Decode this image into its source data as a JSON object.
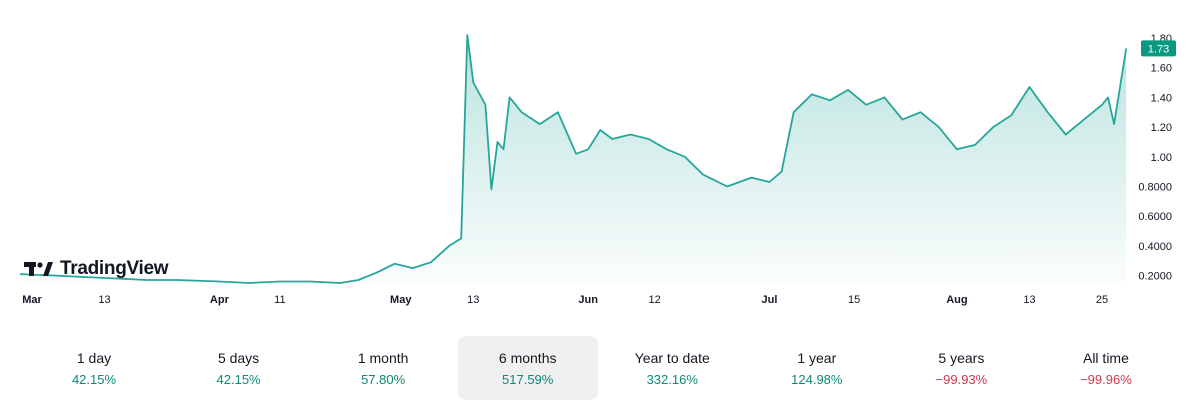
{
  "brand": {
    "name": "TradingView"
  },
  "colors": {
    "line": "#26a69a",
    "positive": "#0b8a74",
    "negative": "#d0364f",
    "price_badge": "#089981"
  },
  "chart_data": {
    "type": "area",
    "x_ticks": [
      {
        "label": "Mar",
        "major": true,
        "date": "2024-03-01"
      },
      {
        "label": "13",
        "major": false,
        "date": "2024-03-13"
      },
      {
        "label": "Apr",
        "major": true,
        "date": "2024-04-01"
      },
      {
        "label": "11",
        "major": false,
        "date": "2024-04-11"
      },
      {
        "label": "May",
        "major": true,
        "date": "2024-05-01"
      },
      {
        "label": "13",
        "major": false,
        "date": "2024-05-13"
      },
      {
        "label": "Jun",
        "major": true,
        "date": "2024-06-01"
      },
      {
        "label": "12",
        "major": false,
        "date": "2024-06-12"
      },
      {
        "label": "Jul",
        "major": true,
        "date": "2024-07-01"
      },
      {
        "label": "15",
        "major": false,
        "date": "2024-07-15"
      },
      {
        "label": "Aug",
        "major": true,
        "date": "2024-08-01"
      },
      {
        "label": "13",
        "major": false,
        "date": "2024-08-13"
      },
      {
        "label": "25",
        "major": false,
        "date": "2024-08-25"
      }
    ],
    "y_ticks": [
      "1.80",
      "1.60",
      "1.40",
      "1.20",
      "1.00",
      "0.8000",
      "0.6000",
      "0.4000",
      "0.2000"
    ],
    "ylim": [
      0.15,
      1.82
    ],
    "last_price": "1.73",
    "series": [
      {
        "points": [
          [
            "2024-02-28",
            0.21
          ],
          [
            "2024-03-05",
            0.2
          ],
          [
            "2024-03-10",
            0.19
          ],
          [
            "2024-03-15",
            0.18
          ],
          [
            "2024-03-20",
            0.17
          ],
          [
            "2024-03-25",
            0.17
          ],
          [
            "2024-04-01",
            0.16
          ],
          [
            "2024-04-06",
            0.15
          ],
          [
            "2024-04-11",
            0.16
          ],
          [
            "2024-04-16",
            0.16
          ],
          [
            "2024-04-21",
            0.15
          ],
          [
            "2024-04-24",
            0.17
          ],
          [
            "2024-04-27",
            0.22
          ],
          [
            "2024-04-30",
            0.28
          ],
          [
            "2024-05-03",
            0.25
          ],
          [
            "2024-05-06",
            0.29
          ],
          [
            "2024-05-09",
            0.4
          ],
          [
            "2024-05-11",
            0.45
          ],
          [
            "2024-05-12",
            1.82
          ],
          [
            "2024-05-13",
            1.5
          ],
          [
            "2024-05-15",
            1.35
          ],
          [
            "2024-05-16",
            0.78
          ],
          [
            "2024-05-17",
            1.1
          ],
          [
            "2024-05-18",
            1.05
          ],
          [
            "2024-05-19",
            1.4
          ],
          [
            "2024-05-21",
            1.3
          ],
          [
            "2024-05-24",
            1.22
          ],
          [
            "2024-05-27",
            1.3
          ],
          [
            "2024-05-30",
            1.02
          ],
          [
            "2024-06-01",
            1.05
          ],
          [
            "2024-06-03",
            1.18
          ],
          [
            "2024-06-05",
            1.12
          ],
          [
            "2024-06-08",
            1.15
          ],
          [
            "2024-06-11",
            1.12
          ],
          [
            "2024-06-14",
            1.05
          ],
          [
            "2024-06-17",
            1.0
          ],
          [
            "2024-06-20",
            0.88
          ],
          [
            "2024-06-24",
            0.8
          ],
          [
            "2024-06-28",
            0.86
          ],
          [
            "2024-07-01",
            0.83
          ],
          [
            "2024-07-03",
            0.9
          ],
          [
            "2024-07-05",
            1.3
          ],
          [
            "2024-07-08",
            1.42
          ],
          [
            "2024-07-11",
            1.38
          ],
          [
            "2024-07-14",
            1.45
          ],
          [
            "2024-07-17",
            1.35
          ],
          [
            "2024-07-20",
            1.4
          ],
          [
            "2024-07-23",
            1.25
          ],
          [
            "2024-07-26",
            1.3
          ],
          [
            "2024-07-29",
            1.2
          ],
          [
            "2024-08-01",
            1.05
          ],
          [
            "2024-08-04",
            1.08
          ],
          [
            "2024-08-07",
            1.2
          ],
          [
            "2024-08-10",
            1.28
          ],
          [
            "2024-08-13",
            1.47
          ],
          [
            "2024-08-16",
            1.3
          ],
          [
            "2024-08-19",
            1.15
          ],
          [
            "2024-08-22",
            1.25
          ],
          [
            "2024-08-25",
            1.35
          ],
          [
            "2024-08-26",
            1.4
          ],
          [
            "2024-08-27",
            1.22
          ],
          [
            "2024-08-29",
            1.73
          ]
        ]
      }
    ]
  },
  "periods": [
    {
      "label": "1 day",
      "value": "42.15%",
      "trend": "pos",
      "active": false
    },
    {
      "label": "5 days",
      "value": "42.15%",
      "trend": "pos",
      "active": false
    },
    {
      "label": "1 month",
      "value": "57.80%",
      "trend": "pos",
      "active": false
    },
    {
      "label": "6 months",
      "value": "517.59%",
      "trend": "pos",
      "active": true
    },
    {
      "label": "Year to date",
      "value": "332.16%",
      "trend": "pos",
      "active": false
    },
    {
      "label": "1 year",
      "value": "124.98%",
      "trend": "pos",
      "active": false
    },
    {
      "label": "5 years",
      "value": "−99.93%",
      "trend": "neg",
      "active": false
    },
    {
      "label": "All time",
      "value": "−99.96%",
      "trend": "neg",
      "active": false
    }
  ]
}
